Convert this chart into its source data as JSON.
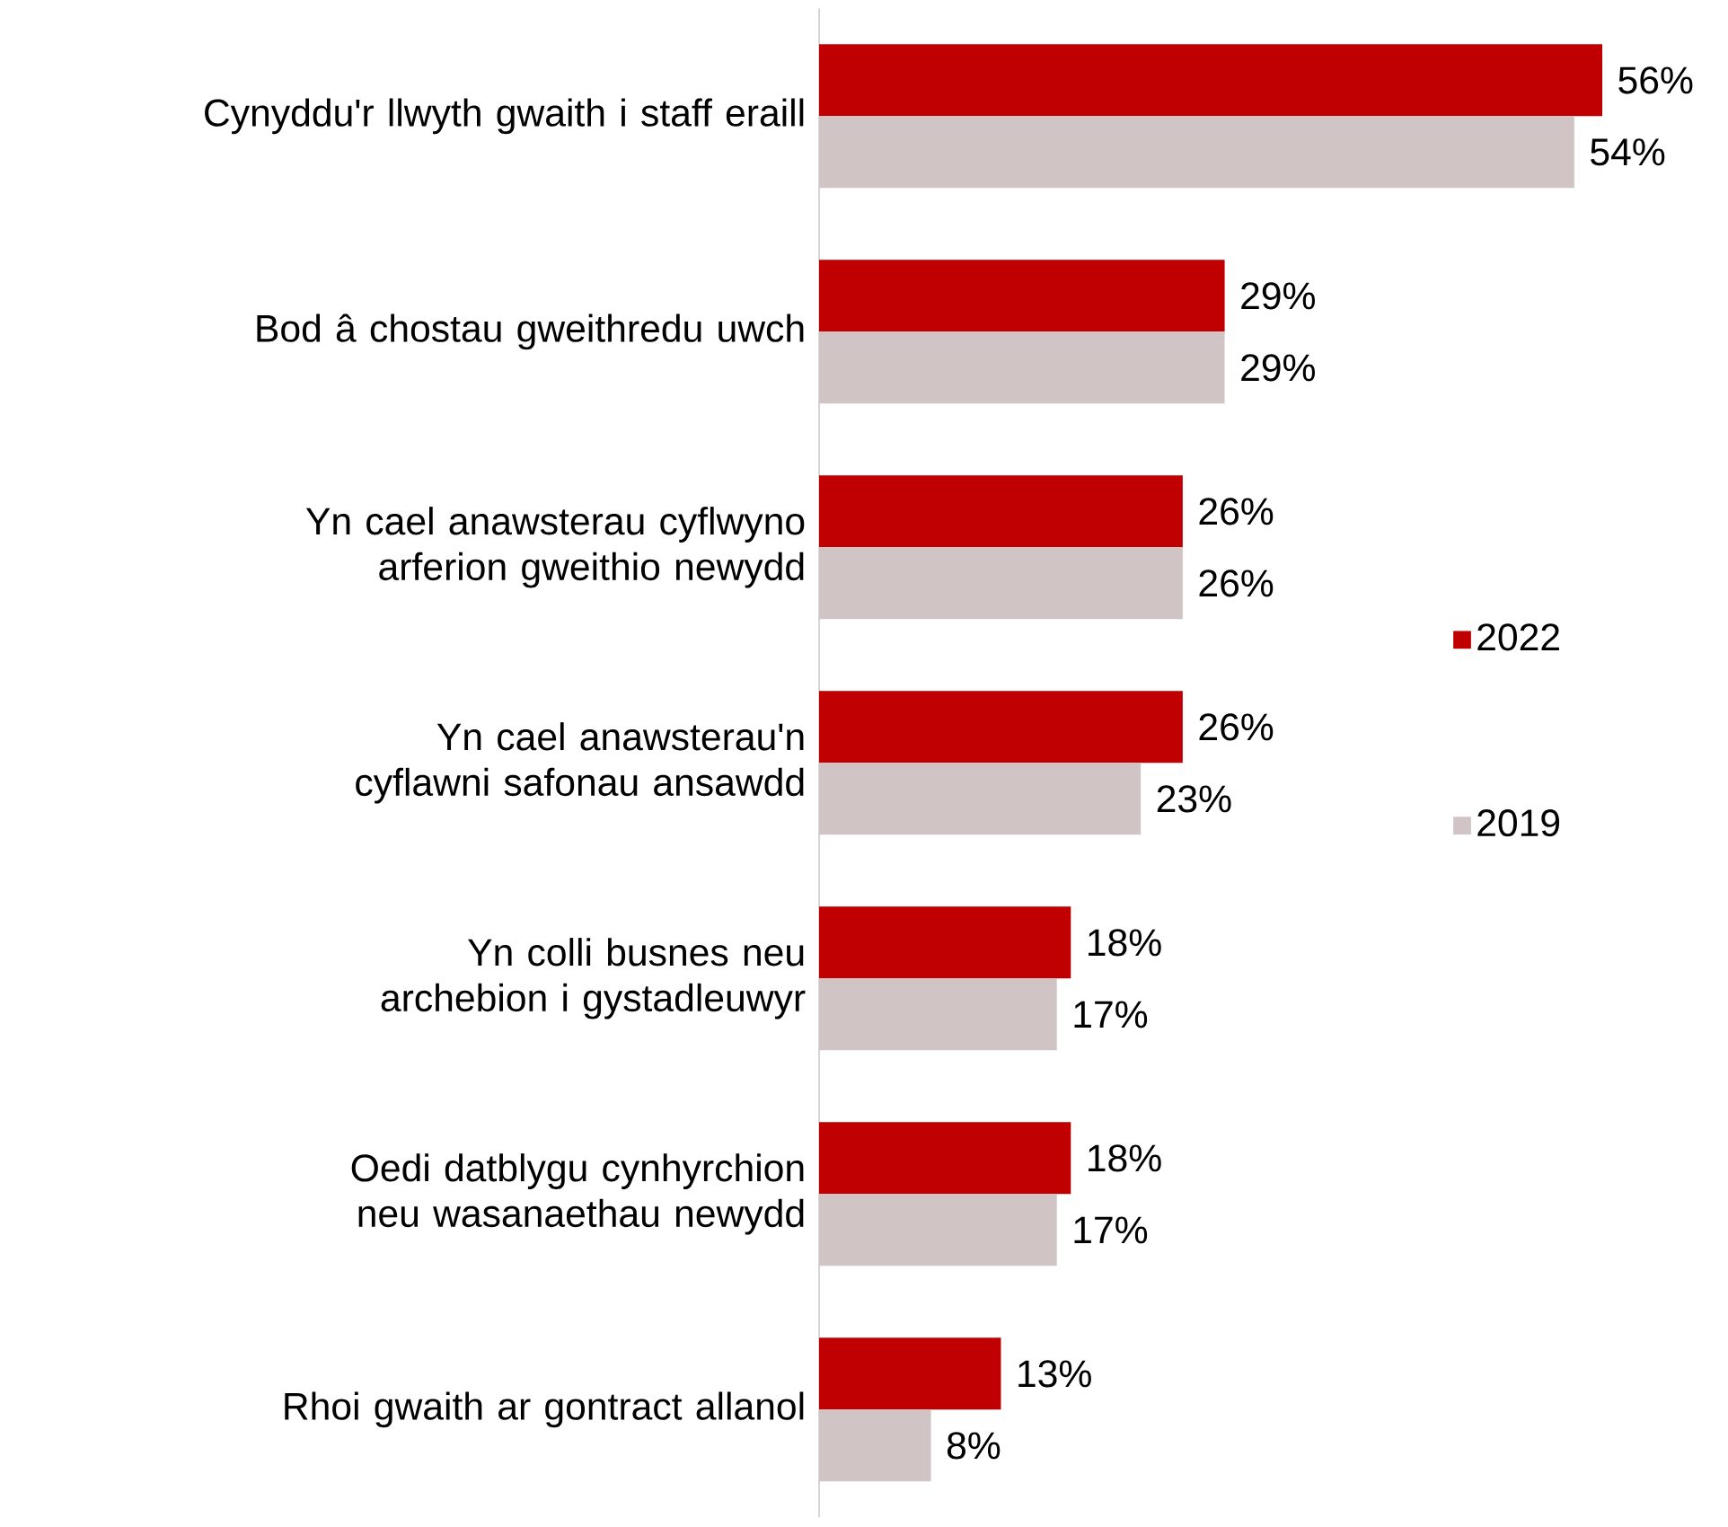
{
  "chart_data": {
    "type": "bar",
    "orientation": "horizontal",
    "categories": [
      "Cynyddu'r llwyth gwaith i staff eraill",
      "Bod â chostau gweithredu uwch",
      "Yn cael anawsterau cyflwyno arferion gweithio newydd",
      "Yn cael anawsterau'n cyflawni safonau ansawdd",
      "Yn colli busnes neu archebion i gystadleuwyr",
      "Oedi datblygu cynhyrchion neu wasanaethau newydd",
      "Rhoi gwaith ar gontract allanol"
    ],
    "series": [
      {
        "name": "2022",
        "color": "#c00000",
        "values": [
          56,
          29,
          26,
          26,
          18,
          18,
          13
        ],
        "value_labels": [
          "56%",
          "29%",
          "26%",
          "26%",
          "18%",
          "18%",
          "13%"
        ]
      },
      {
        "name": "2019",
        "color": "#d0c4c4",
        "values": [
          54,
          29,
          26,
          23,
          17,
          17,
          8
        ],
        "value_labels": [
          "54%",
          "29%",
          "26%",
          "23%",
          "17%",
          "17%",
          "8%"
        ]
      }
    ],
    "xlim": [
      0,
      56
    ],
    "legend": "right"
  }
}
